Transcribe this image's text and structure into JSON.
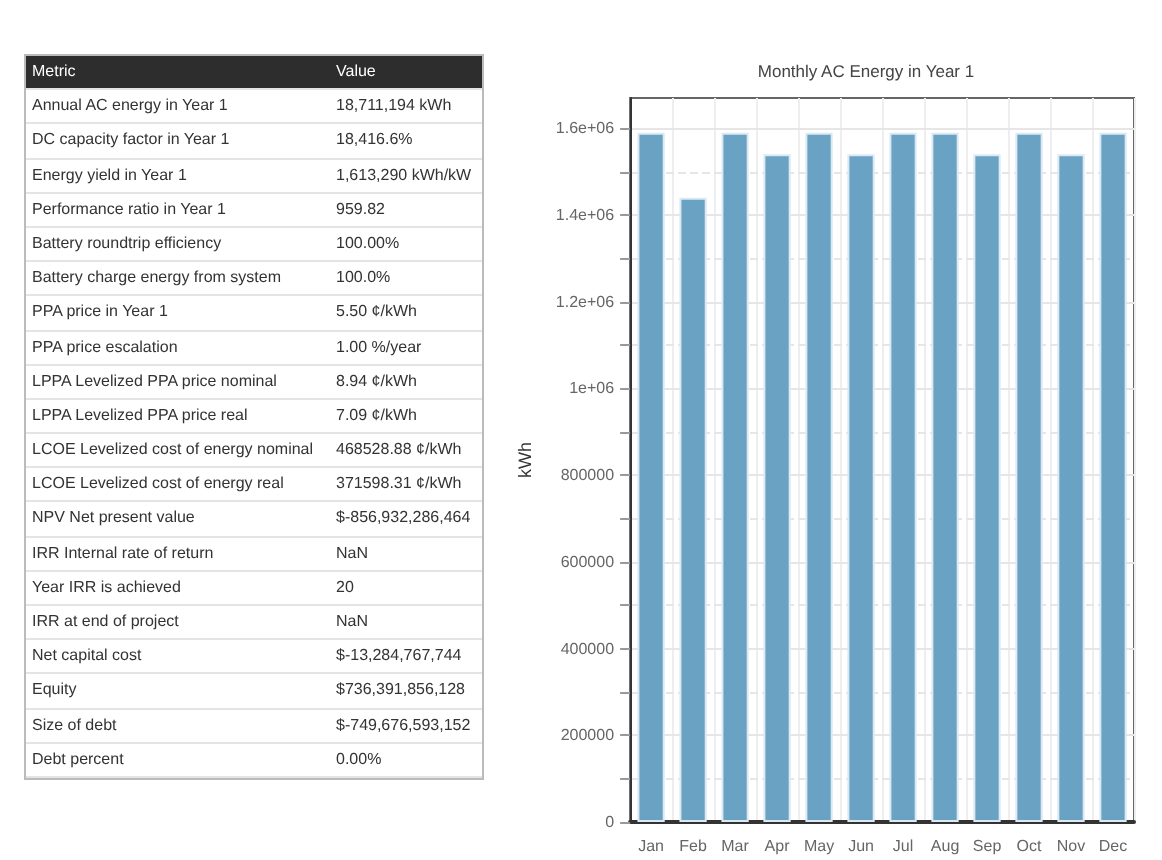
{
  "chart_data": [
    {
      "type": "other",
      "annotations": [
        "Metric",
        "Value",
        "Annual AC energy in Year 1",
        "18,711,194 kWh",
        "DC capacity factor in Year 1",
        "18,416.6%",
        "Energy yield in Year 1",
        "1,613,290 kWh/kW",
        "Performance ratio in Year 1",
        "959.82",
        "Battery roundtrip efficiency",
        "100.00%",
        "Battery charge energy from system",
        "100.0%",
        "PPA price in Year 1",
        "5.50 ¢/kWh",
        "PPA price escalation",
        "1.00 %/year",
        "LPPA Levelized PPA price nominal",
        "8.94 ¢/kWh",
        "LPPA Levelized PPA price real",
        "7.09 ¢/kWh",
        "LCOE Levelized cost of energy nominal",
        "468528.88 ¢/kWh",
        "LCOE Levelized cost of energy real",
        "371598.31 ¢/kWh",
        "NPV Net present value",
        "$-856,932,286,464",
        "IRR Internal rate of return",
        "NaN",
        "Year IRR is achieved",
        "20",
        "IRR at end of project",
        "NaN",
        "Net capital cost",
        "$-13,284,767,744",
        "Equity",
        "$736,391,856,128",
        "Size of debt",
        "$-749,676,593,152",
        "Debt percent",
        "0.00%"
      ]
    },
    {
      "type": "bar",
      "title": "Monthly AC Energy in Year 1",
      "ylabel": "kWh",
      "categories": [
        "Jan",
        "Feb",
        "Mar",
        "Apr",
        "May",
        "Jun",
        "Jul",
        "Aug",
        "Sep",
        "Oct",
        "Nov",
        "Dec"
      ],
      "values": [
        1590000,
        1440000,
        1590000,
        1540000,
        1590000,
        1540000,
        1590000,
        1590000,
        1540000,
        1590000,
        1540000,
        1590000
      ],
      "color": "#6aa2c4",
      "ylim": [
        0,
        1670000
      ],
      "yticks": [
        0,
        {
          "value": 100000,
          "label": null
        },
        200000,
        {
          "value": 300000,
          "label": null
        },
        400000,
        {
          "value": 500000,
          "label": null
        },
        600000,
        {
          "value": 700000,
          "label": null
        },
        800000,
        {
          "value": 900000,
          "label": null
        },
        {
          "value": 1000000,
          "label": "1e+06"
        },
        {
          "value": 1100000,
          "label": null
        },
        {
          "value": 1200000,
          "label": "1.2e+06"
        },
        {
          "value": 1300000,
          "label": null
        },
        {
          "value": 1400000,
          "label": "1.4e+06"
        },
        {
          "value": 1500000,
          "label": null
        },
        {
          "value": 1600000,
          "label": "1.6e+06"
        }
      ],
      "grid": true
    }
  ]
}
